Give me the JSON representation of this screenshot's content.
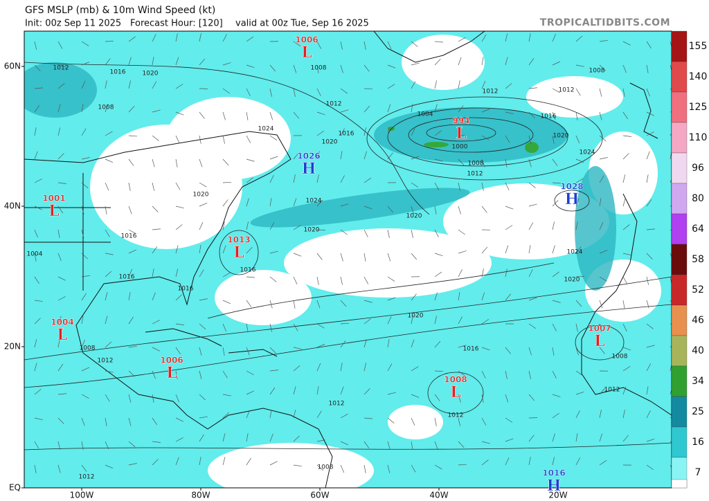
{
  "header": {
    "title": "GFS MSLP (mb) & 10m Wind Speed (kt)",
    "init": "Init: 00z Sep 11 2025",
    "forecast_hour": "Forecast Hour: [120]",
    "valid": "valid at 00z Tue, Sep 16 2025",
    "credit": "TROPICALTIDBITS.COM"
  },
  "map": {
    "lat_labels": [
      "60N",
      "40N",
      "20N",
      "EQ"
    ],
    "lon_labels": [
      "100W",
      "80W",
      "60W",
      "40W",
      "20W"
    ],
    "centers": [
      {
        "value": "1006",
        "letter": "L"
      },
      {
        "value": "994",
        "letter": "L"
      },
      {
        "value": "1026",
        "letter": "H"
      },
      {
        "value": "1028",
        "letter": "H"
      },
      {
        "value": "1001",
        "letter": "L"
      },
      {
        "value": "1013",
        "letter": "L"
      },
      {
        "value": "1004",
        "letter": "L"
      },
      {
        "value": "1007",
        "letter": "L"
      },
      {
        "value": "1006",
        "letter": "L"
      },
      {
        "value": "1008",
        "letter": "L"
      },
      {
        "value": "1016",
        "letter": "H"
      }
    ],
    "isobar_labels": [
      "1012",
      "1016",
      "1020",
      "1008",
      "1012",
      "1016",
      "1020",
      "1004",
      "1000",
      "1008",
      "1012",
      "1012",
      "1016",
      "1020",
      "1024",
      "1012",
      "1008",
      "1024",
      "1020",
      "1024",
      "1020",
      "1020",
      "1016",
      "1016",
      "1004",
      "1016",
      "1016",
      "1024",
      "1020",
      "1020",
      "1016",
      "1012",
      "1008",
      "1012",
      "1012",
      "1008",
      "1012",
      "1012",
      "1008",
      "1008"
    ]
  },
  "colorbar": {
    "ticks": [
      155,
      140,
      125,
      110,
      96,
      80,
      64,
      58,
      52,
      46,
      40,
      34,
      25,
      16,
      7
    ]
  }
}
